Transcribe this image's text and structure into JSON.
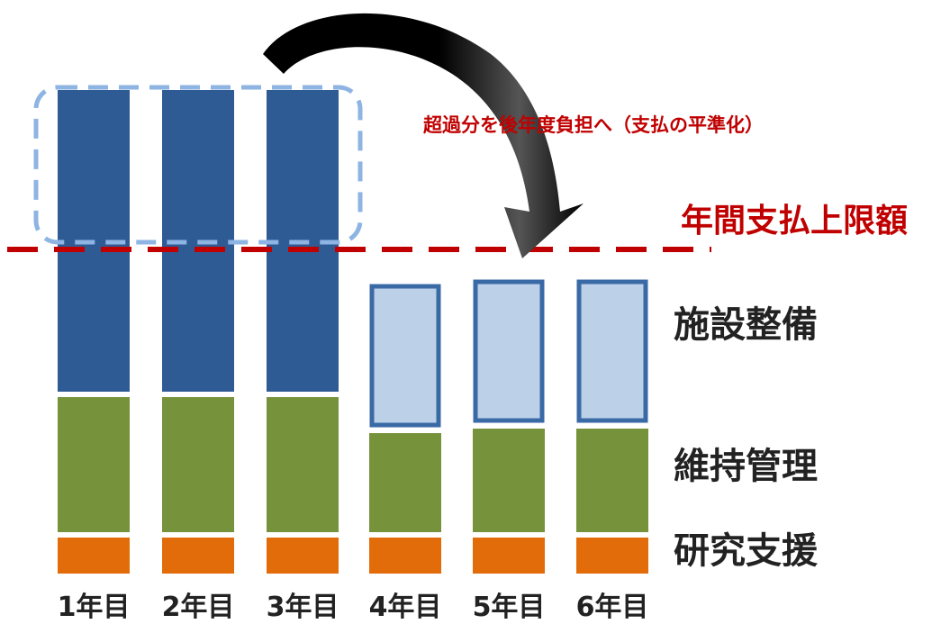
{
  "colors": {
    "facility": "#2f5b95",
    "facility_deferred_fill": "#bcd0e8",
    "facility_deferred_border": "#3a6aa6",
    "maintenance": "#76933c",
    "research": "#e36c0a",
    "limit_line": "#c00000",
    "overflow_box": "#8db4e2",
    "arrow": "#000000"
  },
  "years": [
    "1年目",
    "2年目",
    "3年目",
    "4年目",
    "5年目",
    "6年目"
  ],
  "legend": {
    "facility": "施設整備",
    "maintenance": "維持管理",
    "research": "研究支援"
  },
  "annotations": {
    "limit_label": "年間支払上限額",
    "shift_label": "超過分を後年度負担へ（支払の平準化）"
  },
  "chart_data": {
    "type": "bar",
    "stacked": true,
    "categories": [
      "1年目",
      "2年目",
      "3年目",
      "4年目",
      "5年目",
      "6年目"
    ],
    "series": [
      {
        "name": "研究支援",
        "values": [
          40,
          40,
          40,
          40,
          40,
          40
        ]
      },
      {
        "name": "維持管理",
        "values": [
          150,
          150,
          150,
          110,
          115,
          115
        ]
      },
      {
        "name": "施設整備",
        "values": [
          335,
          335,
          335,
          160,
          160,
          160
        ],
        "deferred": [
          false,
          false,
          false,
          true,
          true,
          true
        ]
      }
    ],
    "annual_limit": 360,
    "annual_limit_label": "年間支払上限額",
    "overflow_label": "超過分を後年度負担へ（支払の平準化）"
  }
}
